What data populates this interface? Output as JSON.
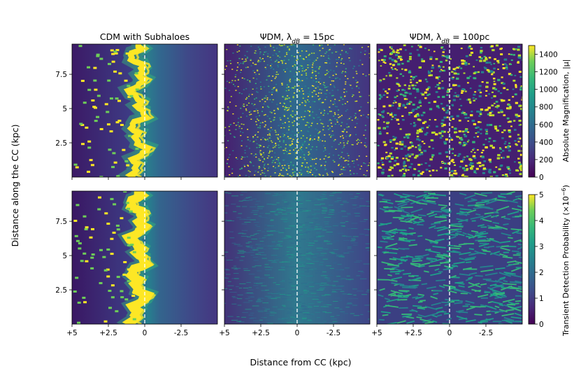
{
  "figure": {
    "ylabel": "Distance along the CC (kpc)",
    "xlabel": "Distance from CC (kpc)"
  },
  "colormap": "viridis",
  "colors": {
    "cc_line": "#ffffff",
    "viridis_low": "#440154",
    "viridis_high": "#fde725"
  },
  "chart_data": [
    {
      "type": "heatmap",
      "title": "CDM with Subhaloes",
      "quantity": "Absolute Magnification, |μ|",
      "xlim": [
        5,
        -5
      ],
      "ylim": [
        0,
        9.7
      ],
      "xticks": [
        "+5",
        "+2.5",
        "0",
        "-2.5"
      ],
      "yticks": [
        "2.5",
        "5",
        "7.5"
      ],
      "critical_curve_x": 0,
      "pattern": "smooth critical curve with yellow caustic ridge meandering near x≈0 to +1; many small subhalo perturbations on the positive side"
    },
    {
      "type": "heatmap",
      "title": "ΨDM, λ",
      "title_sub": "dB",
      "title_suffix": " = 15pc",
      "quantity": "Absolute Magnification, |μ|",
      "xlim": [
        5,
        -5
      ],
      "ylim": [
        0,
        9.7
      ],
      "xticks": [
        "+5",
        "+2.5",
        "0",
        "-2.5"
      ],
      "pattern": "fine granular speckle of high magnification concentrated near the critical curve"
    },
    {
      "type": "heatmap",
      "title": "ΨDM, λ",
      "title_sub": "dB",
      "title_suffix": " = 100pc",
      "quantity": "Absolute Magnification, |μ|",
      "xlim": [
        5,
        -5
      ],
      "ylim": [
        0,
        9.7
      ],
      "xticks": [
        "+5",
        "+2.5",
        "0",
        "-2.5"
      ],
      "pattern": "coarse filamentary caustic network spread across the field"
    },
    {
      "type": "heatmap",
      "quantity": "Transient Detection Probability (×10⁻⁶)",
      "xlim": [
        5,
        -5
      ],
      "ylim": [
        0,
        9.7
      ],
      "xticks": [
        "+5",
        "+2.5",
        "0",
        "-2.5"
      ],
      "yticks": [
        "2.5",
        "5",
        "7.5"
      ],
      "pattern": "yellow band along the meandering critical curve with subhalo spots"
    },
    {
      "type": "heatmap",
      "quantity": "Transient Detection Probability (×10⁻⁶)",
      "xlim": [
        5,
        -5
      ],
      "ylim": [
        0,
        9.7
      ],
      "xticks": [
        "+5",
        "+2.5",
        "0",
        "-2.5"
      ],
      "pattern": "diffuse low-level probability peaking broadly around x≈0"
    },
    {
      "type": "heatmap",
      "quantity": "Transient Detection Probability (×10⁻⁶)",
      "xlim": [
        5,
        -5
      ],
      "ylim": [
        0,
        9.7
      ],
      "xticks": [
        "+5",
        "+2.5",
        "0",
        "-2.5"
      ],
      "xticks_extra": [],
      "pattern": "wavy filament network of moderate probability"
    }
  ],
  "colorbars": [
    {
      "label": "Absolute Magnification, |μ|",
      "range": [
        0,
        1500
      ],
      "ticks": [
        "0",
        "200",
        "400",
        "600",
        "800",
        "1000",
        "1200",
        "1400"
      ]
    },
    {
      "label": "Transient Detection Probability (×10",
      "label_exp": "−6",
      "label_end": ")",
      "range": [
        0,
        5
      ],
      "ticks": [
        "0",
        "1",
        "2",
        "3",
        "4",
        "5"
      ]
    }
  ]
}
